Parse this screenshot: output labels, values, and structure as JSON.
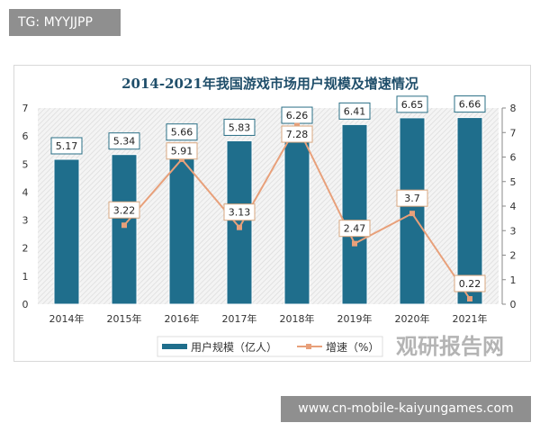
{
  "watermarks": {
    "top_left": "TG: MYYJJPP",
    "bottom_right": "www.cn-mobile-kaiyungames.com",
    "logo": "观研报告网"
  },
  "chart_data": {
    "type": "bar+line",
    "title": "2014-2021年我国游戏市场用户规模及增速情况",
    "categories": [
      "2014年",
      "2015年",
      "2016年",
      "2017年",
      "2018年",
      "2019年",
      "2020年",
      "2021年"
    ],
    "series": [
      {
        "name": "用户规模（亿人）",
        "type": "bar",
        "axis": "left",
        "color": "#1f6e8c",
        "values": [
          5.17,
          5.34,
          5.66,
          5.83,
          6.26,
          6.41,
          6.65,
          6.66
        ]
      },
      {
        "name": "增速（%）",
        "type": "line",
        "axis": "right",
        "color": "#e8a07a",
        "values": [
          null,
          3.22,
          5.91,
          3.13,
          7.28,
          2.47,
          3.7,
          0.22
        ]
      }
    ],
    "y_left": {
      "range": [
        0,
        7
      ],
      "ticks": [
        "0",
        "1",
        "2",
        "3",
        "4",
        "5",
        "6",
        "7"
      ]
    },
    "y_right": {
      "range": [
        0,
        8
      ],
      "ticks": [
        "0",
        "1",
        "2",
        "3",
        "4",
        "5",
        "6",
        "7",
        "8"
      ]
    },
    "legend": "bottom",
    "grid": false
  }
}
